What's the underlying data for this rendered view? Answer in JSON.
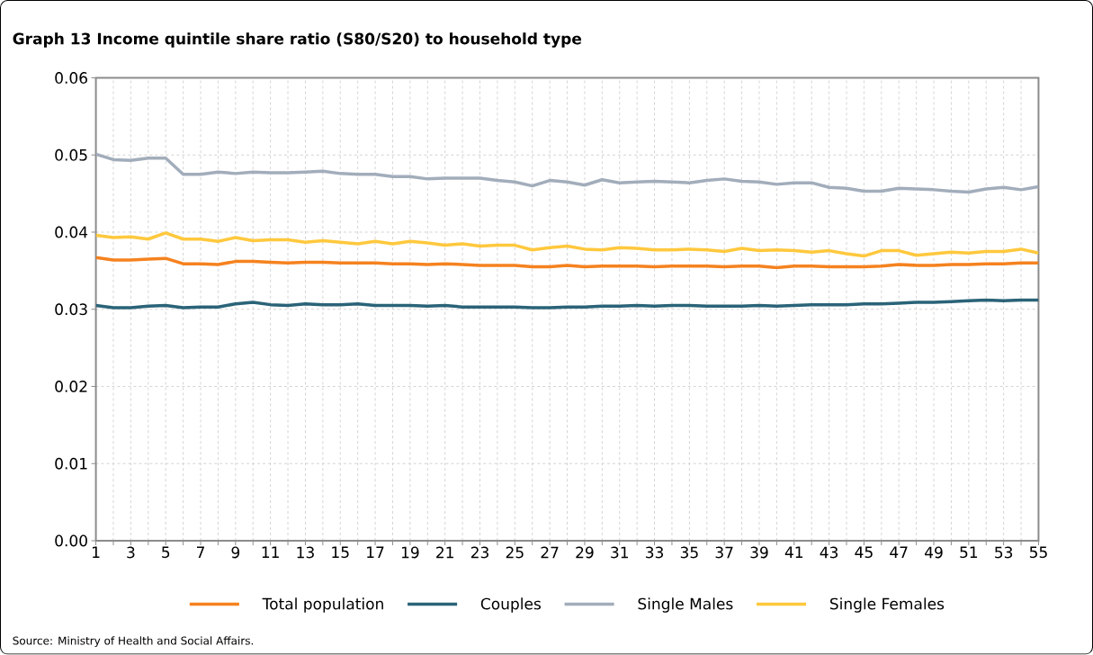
{
  "chart_data": {
    "type": "line",
    "title": "Graph 13    Income quintile share ratio (S80/S20) to household type",
    "annotations": [
      "Source: Ministry of Health and Social Affairs."
    ],
    "x": [
      1,
      2,
      3,
      4,
      5,
      6,
      7,
      8,
      9,
      10,
      11,
      12,
      13,
      14,
      15,
      16,
      17,
      18,
      19,
      20,
      21,
      22,
      23,
      24,
      25,
      26,
      27,
      28,
      29,
      30,
      31,
      32,
      33,
      34,
      35,
      36,
      37,
      38,
      39,
      40,
      41,
      42,
      43,
      44,
      45,
      46,
      47,
      48,
      49,
      50,
      51,
      52,
      53,
      54,
      55
    ],
    "series": [
      {
        "name": "Total population",
        "color": "#f5821f",
        "values": [
          0.0367,
          0.0364,
          0.0364,
          0.0365,
          0.0366,
          0.0359,
          0.0359,
          0.0358,
          0.0362,
          0.0362,
          0.0361,
          0.036,
          0.0361,
          0.0361,
          0.036,
          0.036,
          0.036,
          0.0359,
          0.0359,
          0.0358,
          0.0359,
          0.0358,
          0.0357,
          0.0357,
          0.0357,
          0.0355,
          0.0355,
          0.0357,
          0.0355,
          0.0356,
          0.0356,
          0.0356,
          0.0355,
          0.0356,
          0.0356,
          0.0356,
          0.0355,
          0.0356,
          0.0356,
          0.0354,
          0.0356,
          0.0356,
          0.0355,
          0.0355,
          0.0355,
          0.0356,
          0.0358,
          0.0357,
          0.0357,
          0.0358,
          0.0358,
          0.0359,
          0.0359,
          0.036,
          0.036
        ]
      },
      {
        "name": "Couples",
        "color": "#2a6378",
        "values": [
          0.0305,
          0.0302,
          0.0302,
          0.0304,
          0.0305,
          0.0302,
          0.0303,
          0.0303,
          0.0307,
          0.0309,
          0.0306,
          0.0305,
          0.0307,
          0.0306,
          0.0306,
          0.0307,
          0.0305,
          0.0305,
          0.0305,
          0.0304,
          0.0305,
          0.0303,
          0.0303,
          0.0303,
          0.0303,
          0.0302,
          0.0302,
          0.0303,
          0.0303,
          0.0304,
          0.0304,
          0.0305,
          0.0304,
          0.0305,
          0.0305,
          0.0304,
          0.0304,
          0.0304,
          0.0305,
          0.0304,
          0.0305,
          0.0306,
          0.0306,
          0.0306,
          0.0307,
          0.0307,
          0.0308,
          0.0309,
          0.0309,
          0.031,
          0.0311,
          0.0312,
          0.0311,
          0.0312,
          0.0312
        ]
      },
      {
        "name": "Single Males",
        "color": "#a2adbb",
        "values": [
          0.0501,
          0.0494,
          0.0493,
          0.0496,
          0.0496,
          0.0475,
          0.0475,
          0.0478,
          0.0476,
          0.0478,
          0.0477,
          0.0477,
          0.0478,
          0.0479,
          0.0476,
          0.0475,
          0.0475,
          0.0472,
          0.0472,
          0.0469,
          0.047,
          0.047,
          0.047,
          0.0467,
          0.0465,
          0.046,
          0.0467,
          0.0465,
          0.0461,
          0.0468,
          0.0464,
          0.0465,
          0.0466,
          0.0465,
          0.0464,
          0.0467,
          0.0469,
          0.0466,
          0.0465,
          0.0462,
          0.0464,
          0.0464,
          0.0458,
          0.0457,
          0.0453,
          0.0453,
          0.0457,
          0.0456,
          0.0455,
          0.0453,
          0.0452,
          0.0456,
          0.0458,
          0.0455,
          0.0459
        ]
      },
      {
        "name": "Single Females",
        "color": "#ffc83d",
        "values": [
          0.0396,
          0.0393,
          0.0394,
          0.0391,
          0.0399,
          0.0391,
          0.0391,
          0.0388,
          0.0393,
          0.0389,
          0.039,
          0.039,
          0.0387,
          0.0389,
          0.0387,
          0.0385,
          0.0388,
          0.0385,
          0.0388,
          0.0386,
          0.0383,
          0.0385,
          0.0382,
          0.0383,
          0.0383,
          0.0377,
          0.038,
          0.0382,
          0.0378,
          0.0377,
          0.038,
          0.0379,
          0.0377,
          0.0377,
          0.0378,
          0.0377,
          0.0375,
          0.0379,
          0.0376,
          0.0377,
          0.0376,
          0.0374,
          0.0376,
          0.0372,
          0.0369,
          0.0376,
          0.0376,
          0.037,
          0.0372,
          0.0374,
          0.0373,
          0.0375,
          0.0375,
          0.0378,
          0.0373
        ]
      }
    ],
    "xlim": [
      1,
      55
    ],
    "xticks": [
      1,
      {
        "value": 2,
        "label": null
      },
      3,
      {
        "value": 4,
        "label": null
      },
      5,
      {
        "value": 6,
        "label": null
      },
      7,
      {
        "value": 8,
        "label": null
      },
      9,
      {
        "value": 10,
        "label": null
      },
      11,
      {
        "value": 12,
        "label": null
      },
      13,
      {
        "value": 14,
        "label": null
      },
      15,
      {
        "value": 16,
        "label": null
      },
      17,
      {
        "value": 18,
        "label": null
      },
      19,
      {
        "value": 20,
        "label": null
      },
      21,
      {
        "value": 22,
        "label": null
      },
      23,
      {
        "value": 24,
        "label": null
      },
      25,
      {
        "value": 26,
        "label": null
      },
      27,
      {
        "value": 28,
        "label": null
      },
      29,
      {
        "value": 30,
        "label": null
      },
      31,
      {
        "value": 32,
        "label": null
      },
      33,
      {
        "value": 34,
        "label": null
      },
      35,
      {
        "value": 36,
        "label": null
      },
      37,
      {
        "value": 38,
        "label": null
      },
      39,
      {
        "value": 40,
        "label": null
      },
      41,
      {
        "value": 42,
        "label": null
      },
      43,
      {
        "value": 44,
        "label": null
      },
      45,
      {
        "value": 46,
        "label": null
      },
      47,
      {
        "value": 48,
        "label": null
      },
      49,
      {
        "value": 50,
        "label": null
      },
      51,
      {
        "value": 52,
        "label": null
      },
      53,
      {
        "value": 54,
        "label": null
      },
      55
    ],
    "ylim": [
      0,
      0.06
    ],
    "yticks": [
      {
        "value": 0,
        "label": "0.00"
      },
      {
        "value": 0.01,
        "label": "0.01"
      },
      {
        "value": 0.02,
        "label": "0.02"
      },
      {
        "value": 0.03,
        "label": "0.03"
      },
      {
        "value": 0.04,
        "label": "0.04"
      },
      {
        "value": 0.05,
        "label": "0.05"
      },
      {
        "value": 0.06,
        "label": "0.06"
      }
    ],
    "grid": true,
    "legend": "bottom",
    "marker": "none",
    "line_style": "solid"
  }
}
